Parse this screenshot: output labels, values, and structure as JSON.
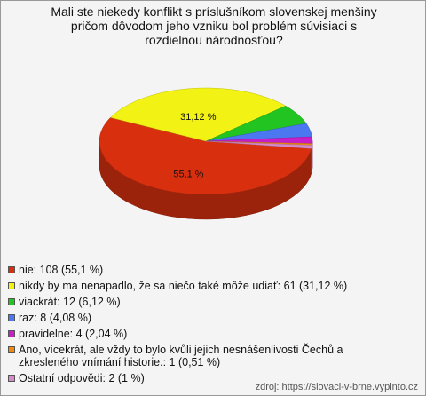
{
  "chart_data": {
    "type": "pie",
    "title": "Mali ste niekedy konflikt s príslušníkom slovenskej menšiny pričom dôvodom jeho vzniku bol problém súvisiaci s rozdielnou národnosťou?",
    "categories": [
      "nie: 108 (55,1 %)",
      "nikdy by ma nenapadlo, že sa niečo také môže udiať: 61 (31,12 %)",
      "viackrát: 12 (6,12 %)",
      "raz: 8 (4,08 %)",
      "pravidelne: 4 (2,04 %)",
      "Ano, vícekrát, ale vždy to bylo kvůli jejich nesnášenlivosti Čechů a zkresleného vnímání historie.: 1 (0,51 %)",
      "Ostatní odpovědi: 2 (1 %)"
    ],
    "values": [
      55.1,
      31.12,
      6.12,
      4.08,
      2.04,
      0.51,
      1
    ],
    "value_labels": [
      "55,1 %",
      "31,12 %",
      null,
      null,
      null,
      null,
      null
    ],
    "colors": [
      "#d8300f",
      "#f2f214",
      "#22c422",
      "#4b78f0",
      "#c81ec8",
      "#f08a10",
      "#d68ac8"
    ],
    "source": "zdroj: https://slovaci-v-brne.vyplnto.cz"
  }
}
